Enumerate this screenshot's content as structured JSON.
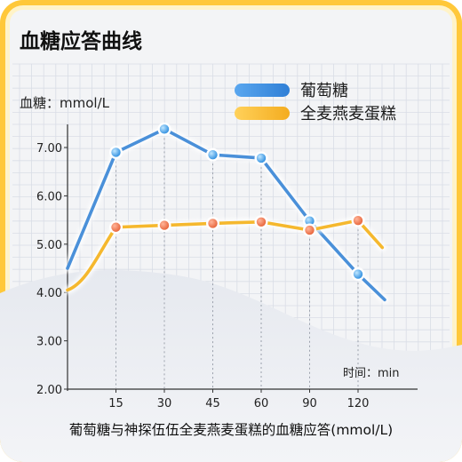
{
  "chart_data": {
    "type": "line",
    "title": "血糖应答曲线",
    "ylabel": "血糖：mmol/L",
    "xlabel": "时间：min",
    "caption": "葡萄糖与神探伍伍全麦燕麦蛋糕的血糖应答(mmol/L)",
    "categories": [
      "15",
      "30",
      "45",
      "60",
      "90",
      "120"
    ],
    "yticks": [
      "2.00",
      "3.00",
      "4.00",
      "5.00",
      "6.00",
      "7.00"
    ],
    "ylim": [
      2,
      7.6
    ],
    "grid": true,
    "legend_position": "top-right",
    "series": [
      {
        "name": "葡萄糖",
        "color": "#4a90d9",
        "values": [
          6.9,
          7.38,
          6.85,
          6.78,
          5.48,
          4.38
        ],
        "start": {
          "x": 0,
          "y": 4.5
        },
        "end": {
          "x": 6.55,
          "y": 3.85
        }
      },
      {
        "name": "全麦燕麦蛋糕",
        "color": "#f5b82e",
        "values": [
          5.35,
          5.39,
          5.43,
          5.46,
          5.29,
          5.49
        ],
        "start": {
          "x": 0,
          "y": 4.05
        },
        "end": {
          "x": 6.5,
          "y": 4.93
        }
      }
    ]
  }
}
